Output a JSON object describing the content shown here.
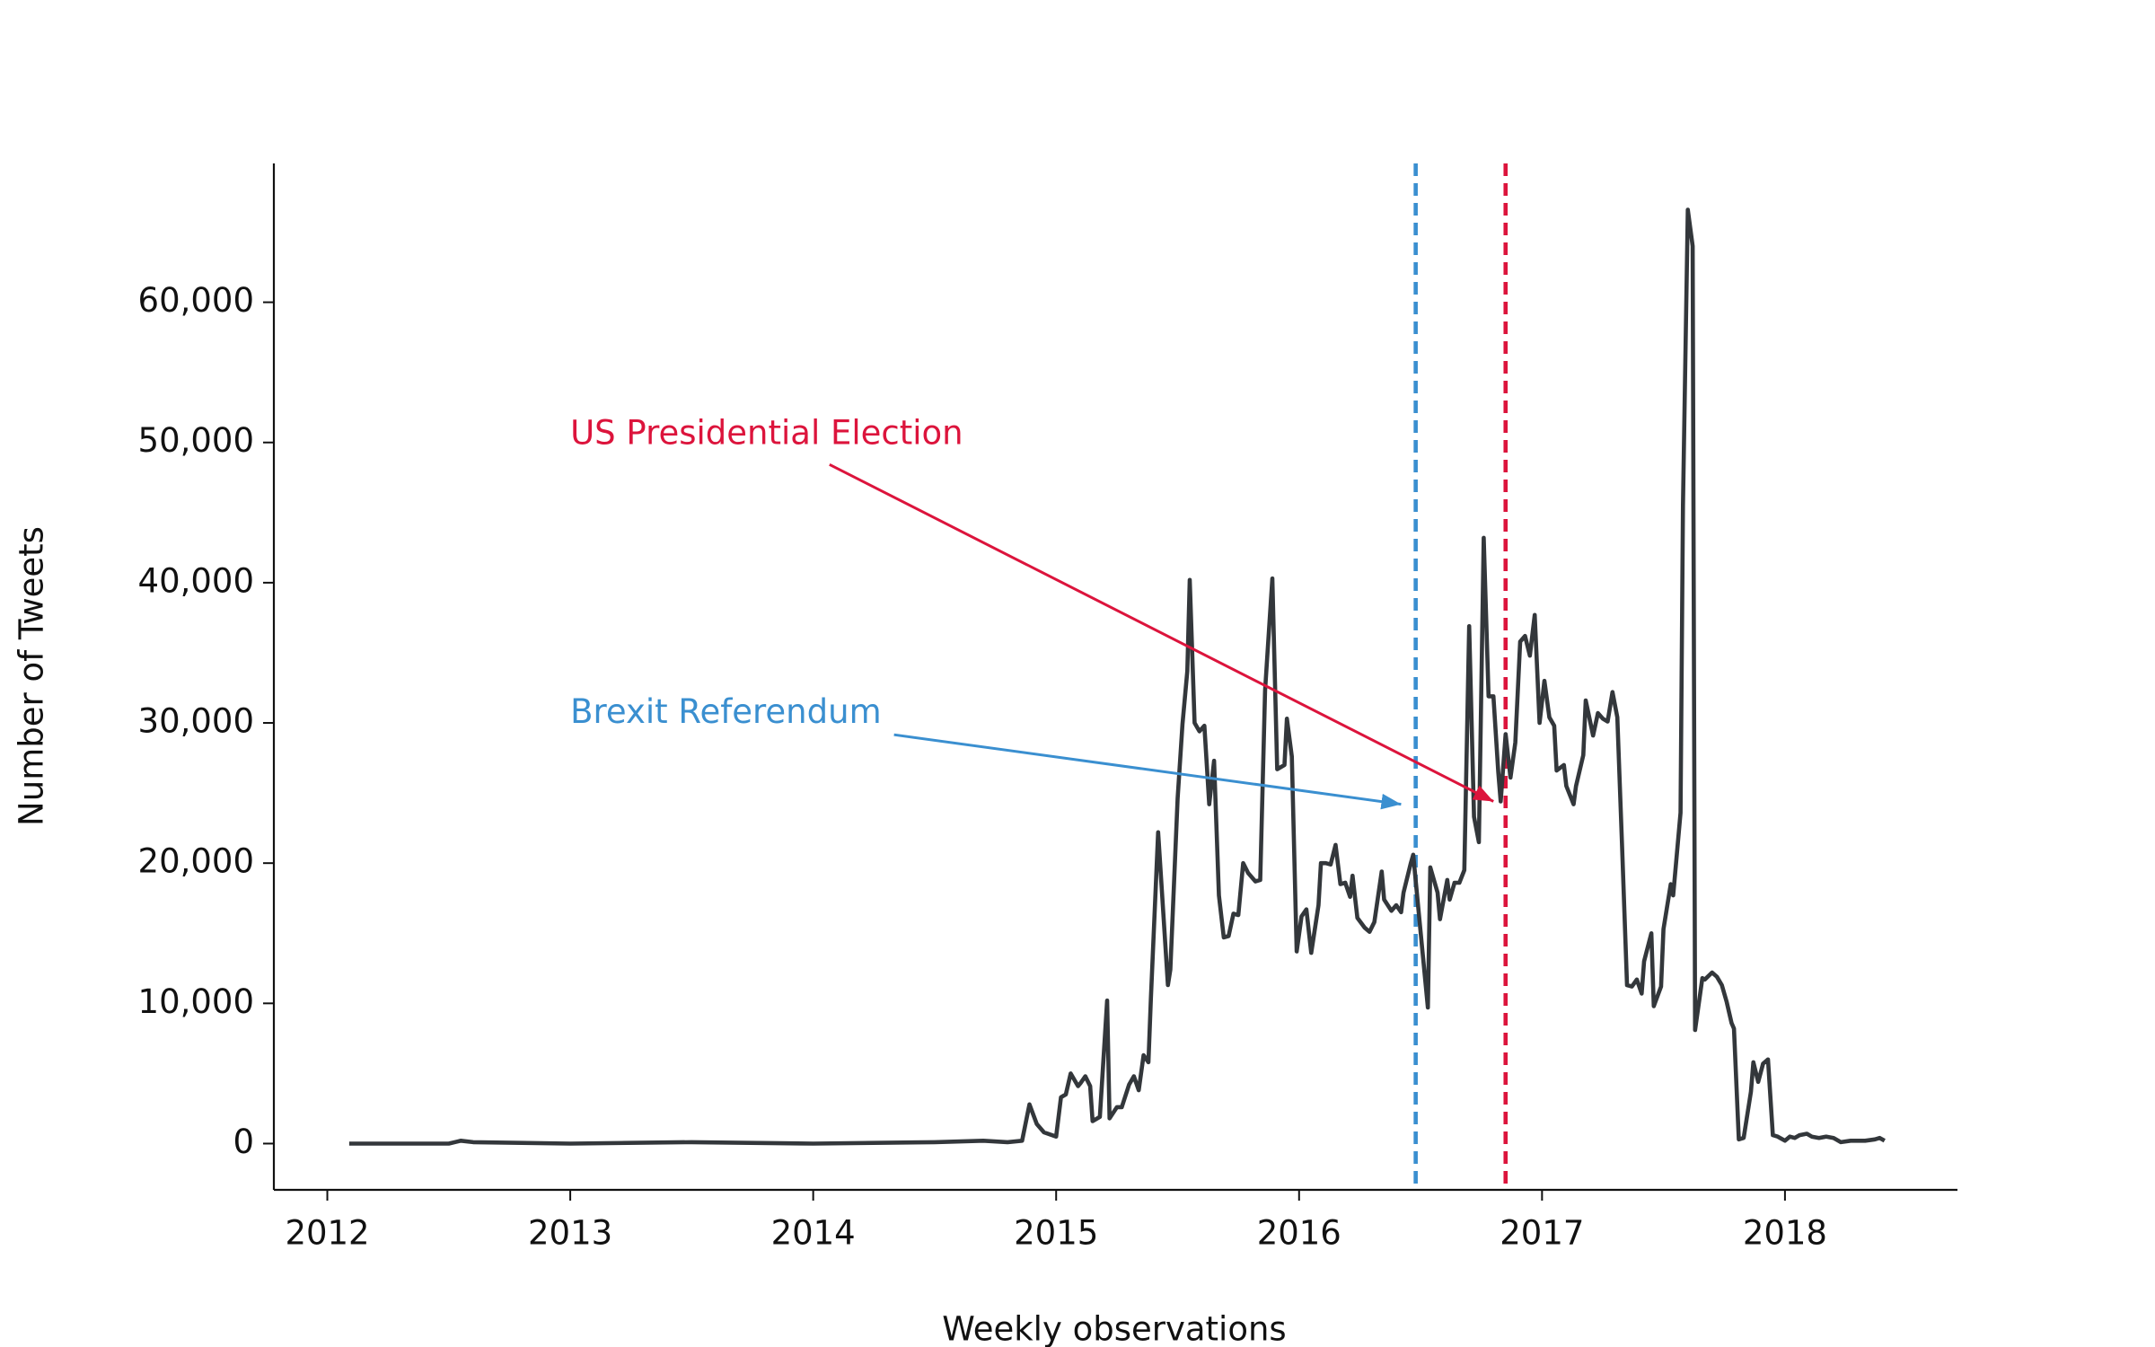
{
  "chart_data": {
    "type": "line",
    "x_label": "Weekly observations",
    "y_label": "Number of Tweets",
    "color": "#33373b",
    "xlim": [
      2011.78,
      2018.71
    ],
    "ylim": [
      -3300,
      69900
    ],
    "xticks": [
      2012,
      2013,
      2014,
      2015,
      2016,
      2017,
      2018
    ],
    "yticks": [
      0,
      {
        "value": 10000,
        "label": "10,000"
      },
      {
        "value": 20000,
        "label": "20,000"
      },
      {
        "value": 30000,
        "label": "30,000"
      },
      {
        "value": 40000,
        "label": "40,000"
      },
      {
        "value": 50000,
        "label": "50,000"
      },
      {
        "value": 60000,
        "label": "60,000"
      }
    ],
    "x": [
      2012.09,
      2012.5,
      2012.55,
      2012.6,
      2013,
      2013.5,
      2014,
      2014.5,
      2014.7,
      2014.8,
      2014.86,
      2014.89,
      2014.92,
      2014.95,
      2015.0,
      2015.02,
      2015.04,
      2015.06,
      2015.09,
      2015.1,
      2015.12,
      2015.14,
      2015.15,
      2015.18,
      2015.21,
      2015.22,
      2015.25,
      2015.27,
      2015.3,
      2015.32,
      2015.34,
      2015.36,
      2015.38,
      2015.39,
      2015.42,
      2015.46,
      2015.47,
      2015.5,
      2015.52,
      2015.54,
      2015.55,
      2015.57,
      2015.59,
      2015.61,
      2015.63,
      2015.65,
      2015.67,
      2015.69,
      2015.71,
      2015.73,
      2015.75,
      2015.77,
      2015.79,
      2015.82,
      2015.84,
      2015.86,
      2015.87,
      2015.89,
      2015.91,
      2015.94,
      2015.95,
      2015.97,
      2015.99,
      2016.01,
      2016.03,
      2016.05,
      2016.08,
      2016.09,
      2016.11,
      2016.13,
      2016.15,
      2016.17,
      2016.19,
      2016.21,
      2016.22,
      2016.24,
      2016.27,
      2016.29,
      2016.31,
      2016.34,
      2016.35,
      2016.38,
      2016.4,
      2016.42,
      2016.43,
      2016.46,
      2016.47,
      2016.49,
      2016.51,
      2016.53,
      2016.54,
      2016.57,
      2016.58,
      2016.61,
      2016.62,
      2016.64,
      2016.66,
      2016.68,
      2016.7,
      2016.72,
      2016.74,
      2016.76,
      2016.78,
      2016.8,
      2016.82,
      2016.83,
      2016.85,
      2016.87,
      2016.89,
      2016.91,
      2016.93,
      2016.95,
      2016.97,
      2016.99,
      2017.01,
      2017.03,
      2017.05,
      2017.06,
      2017.09,
      2017.1,
      2017.13,
      2017.14,
      2017.17,
      2017.18,
      2017.21,
      2017.23,
      2017.25,
      2017.27,
      2017.29,
      2017.31,
      2017.33,
      2017.35,
      2017.37,
      2017.39,
      2017.41,
      2017.42,
      2017.45,
      2017.46,
      2017.49,
      2017.5,
      2017.53,
      2017.54,
      2017.57,
      2017.58,
      2017.6,
      2017.62,
      2017.63,
      2017.66,
      2017.67,
      2017.7,
      2017.72,
      2017.74,
      2017.76,
      2017.78,
      2017.79,
      2017.81,
      2017.83,
      2017.86,
      2017.87,
      2017.89,
      2017.91,
      2017.93,
      2017.95,
      2017.97,
      2018.0,
      2018.02,
      2018.04,
      2018.06,
      2018.09,
      2018.11,
      2018.14,
      2018.17,
      2018.2,
      2018.23,
      2018.27,
      2018.33,
      2018.37,
      2018.39,
      2018.41
    ],
    "values": [
      0,
      0,
      200,
      100,
      0,
      100,
      0,
      100,
      200,
      100,
      200,
      2800,
      1400,
      800,
      500,
      3300,
      3500,
      5000,
      4100,
      4300,
      4800,
      4100,
      1600,
      1900,
      10200,
      1800,
      2600,
      2600,
      4200,
      4800,
      3800,
      6300,
      5800,
      10300,
      22200,
      11300,
      12400,
      24600,
      29900,
      33700,
      40200,
      30000,
      29400,
      29800,
      24200,
      27300,
      17700,
      14700,
      14800,
      16400,
      16300,
      20000,
      19300,
      18700,
      18800,
      32300,
      35000,
      40300,
      26700,
      27000,
      30300,
      27600,
      13700,
      16200,
      16700,
      13600,
      17000,
      20000,
      20000,
      19900,
      21300,
      18500,
      18600,
      17600,
      19100,
      16100,
      15400,
      15100,
      15800,
      19400,
      17400,
      16600,
      17000,
      16500,
      17900,
      20000,
      20600,
      16900,
      13300,
      9700,
      19700,
      17900,
      16000,
      18800,
      17400,
      18600,
      18600,
      19500,
      36900,
      23300,
      21500,
      43200,
      31900,
      31900,
      26500,
      24400,
      29200,
      26100,
      28600,
      35800,
      36200,
      34800,
      37700,
      30000,
      33000,
      30400,
      29800,
      26600,
      27000,
      25500,
      24200,
      25500,
      27700,
      31600,
      29100,
      30700,
      30300,
      30100,
      32200,
      30400,
      21000,
      11300,
      11200,
      11700,
      10700,
      13000,
      15000,
      9800,
      11200,
      15300,
      18500,
      17700,
      23600,
      45500,
      66600,
      64000,
      8100,
      11800,
      11700,
      12200,
      11900,
      11300,
      10100,
      8600,
      8200,
      300,
      400,
      3700,
      5800,
      4400,
      5700,
      6000,
      600,
      500,
      200,
      500,
      400,
      600,
      700,
      500,
      400,
      500,
      400,
      100,
      200,
      200,
      300,
      400,
      200
    ],
    "annotations": [
      {
        "text": "Brexit Referendum",
        "color": "#3a8fd0",
        "line_x": 2016.48,
        "xy": [
          2016.42,
          24200
        ],
        "xytext": [
          2013.0,
          30000
        ]
      },
      {
        "text": "US Presidential Election",
        "color": "#dc143c",
        "line_x": 2016.85,
        "xy": [
          2016.8,
          24400
        ],
        "xytext": [
          2013.0,
          49900
        ]
      }
    ]
  }
}
